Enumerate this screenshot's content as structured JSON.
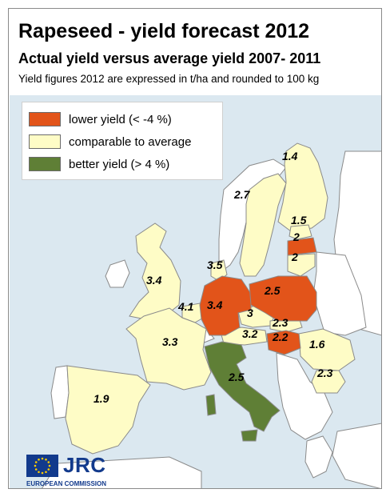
{
  "title": "Rapeseed - yield forecast 2012",
  "subtitle": "Actual yield versus average yield 2007- 2011",
  "note": "Yield figures 2012 are expressed in t/ha and rounded to 100 kg",
  "legend": [
    {
      "label": "lower yield (< -4 %)",
      "color": "#e2541a"
    },
    {
      "label": "comparable to average",
      "color": "#fefcc6"
    },
    {
      "label": "better yield (> 4 %)",
      "color": "#5f7f36"
    }
  ],
  "colors": {
    "sea": "#dbe8f0",
    "nodata_land": "#ffffff",
    "border": "#8a8a8a",
    "lower": "#e2541a",
    "comparable": "#fefcc6",
    "better": "#5f7f36"
  },
  "regions": {
    "finland": "1.4",
    "sweden": "2.7",
    "estonia": "1.5",
    "latvia": "2",
    "lithuania": "2",
    "denmark": "3.5",
    "united_kingdom": "3.4",
    "germany": "3.4",
    "poland": "2.5",
    "belgium_lux": "4.1",
    "czech_republic": "3",
    "slovakia": "2.3",
    "austria": "3.2",
    "hungary": "2.2",
    "france": "3.3",
    "romania": "1.6",
    "bulgaria": "2.3",
    "italy": "2.5",
    "spain": "1.9"
  },
  "logo": {
    "name": "JRC",
    "org": "EUROPEAN COMMISSION",
    "flag_color": "#123a8c",
    "star_color": "#ffcc00"
  }
}
